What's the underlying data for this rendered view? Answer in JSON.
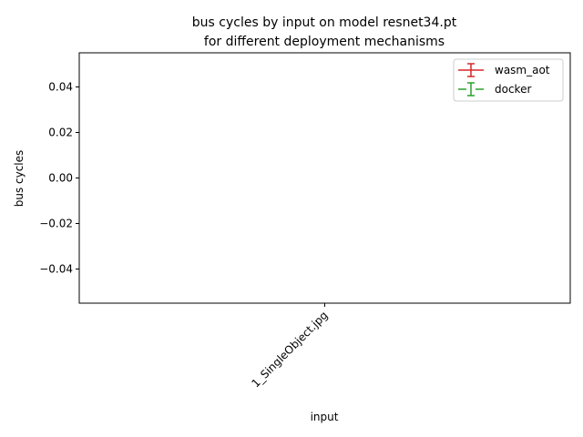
{
  "chart_data": {
    "type": "line",
    "title": "bus cycles by input on model resnet34.pt\nfor different deployment mechanisms",
    "title_lines": [
      "bus cycles by input on model resnet34.pt",
      "for different deployment mechanisms"
    ],
    "xlabel": "input",
    "ylabel": "bus cycles",
    "categories": [
      "1_SingleObject.jpg"
    ],
    "ylim": [
      -0.055,
      0.055
    ],
    "yticks": [
      -0.04,
      -0.02,
      0.0,
      0.02,
      0.04
    ],
    "ytick_labels": [
      "−0.04",
      "−0.02",
      "0.00",
      "0.02",
      "0.04"
    ],
    "grid": false,
    "legend_position": "top-right",
    "series": [
      {
        "name": "wasm_aot",
        "color": "#d62728",
        "linestyle": "solid",
        "errorbars": true,
        "values": [
          null
        ]
      },
      {
        "name": "docker",
        "color": "#2ca02c",
        "linestyle": "dashed",
        "errorbars": true,
        "values": [
          null
        ]
      }
    ]
  }
}
